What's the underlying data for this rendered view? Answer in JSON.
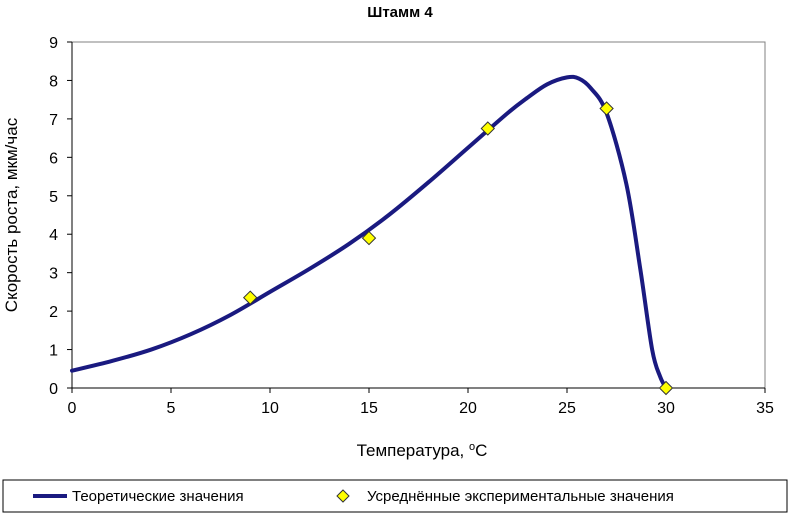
{
  "chart_data": {
    "type": "line",
    "title": "Штамм 4",
    "xlabel": "Температура, °С",
    "xlabel_main": "Температура, ",
    "xlabel_sup": "о",
    "xlabel_unit": "С",
    "ylabel": "Скорость роста, мкм/час",
    "xlim": [
      0,
      35
    ],
    "ylim": [
      0,
      9
    ],
    "xticks": [
      0,
      5,
      10,
      15,
      20,
      25,
      30,
      35
    ],
    "yticks": [
      0,
      1,
      2,
      3,
      4,
      5,
      6,
      7,
      8,
      9
    ],
    "grid": false,
    "legend_position": "bottom",
    "series": [
      {
        "name": "Теоретические значения",
        "kind": "line",
        "color": "#1a1a80",
        "x": [
          0,
          2,
          4,
          6,
          8,
          10,
          12,
          14,
          16,
          18,
          20,
          22,
          23,
          24,
          25,
          25.6,
          26.2,
          27,
          28,
          28.7,
          29.3,
          29.7,
          30
        ],
        "y": [
          0.45,
          0.7,
          1.0,
          1.4,
          1.9,
          2.5,
          3.1,
          3.75,
          4.5,
          5.35,
          6.25,
          7.15,
          7.55,
          7.9,
          8.08,
          8.05,
          7.8,
          7.15,
          5.3,
          3.1,
          1.0,
          0.3,
          0.0
        ]
      },
      {
        "name": "Усреднённые экспериментальные значения",
        "kind": "scatter",
        "marker": "diamond",
        "color": "#ffff00",
        "x": [
          9,
          15,
          21,
          27,
          30
        ],
        "y": [
          2.35,
          3.9,
          6.75,
          7.27,
          0.0
        ]
      }
    ]
  }
}
